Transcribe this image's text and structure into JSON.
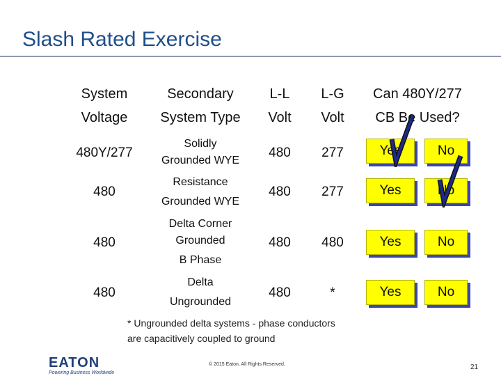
{
  "title": "Slash Rated Exercise",
  "headers": {
    "system": [
      "System",
      "Voltage"
    ],
    "secondary": [
      "Secondary",
      "System Type"
    ],
    "ll": [
      "L-L",
      "Volt"
    ],
    "lg": [
      "L-G",
      "Volt"
    ],
    "cb": [
      "Can 480Y/277",
      "CB Be Used?"
    ]
  },
  "rows": [
    {
      "voltage": "480Y/277",
      "type": [
        "Solidly",
        "Grounded WYE"
      ],
      "ll": "480",
      "lg": "277",
      "yes": "Yes",
      "no": "No",
      "checked": "yes"
    },
    {
      "voltage": "480",
      "type": [
        "Resistance",
        "Grounded WYE"
      ],
      "ll": "480",
      "lg": "277",
      "yes": "Yes",
      "no": "No",
      "checked": "no"
    },
    {
      "voltage": "480",
      "type": [
        "Delta Corner",
        "Grounded",
        "B Phase"
      ],
      "ll": "480",
      "lg": "480",
      "yes": "Yes",
      "no": "No",
      "checked": null
    },
    {
      "voltage": "480",
      "type": [
        "Delta",
        "Ungrounded"
      ],
      "ll": "480",
      "lg": "*",
      "yes": "Yes",
      "no": "No",
      "checked": null
    }
  ],
  "footnote": [
    "* Ungrounded delta systems - phase conductors",
    "are capacitively coupled to ground"
  ],
  "logo": {
    "word": "EATON",
    "tagline": "Powering Business Worldwide"
  },
  "copyright": "© 2015 Eaton. All Rights Reserved.",
  "page_number": "21",
  "colors": {
    "title": "#1f4e8c",
    "box_fill": "#ffff00",
    "box_shadow": "#3d47a8",
    "check": "#1b2a8a"
  }
}
